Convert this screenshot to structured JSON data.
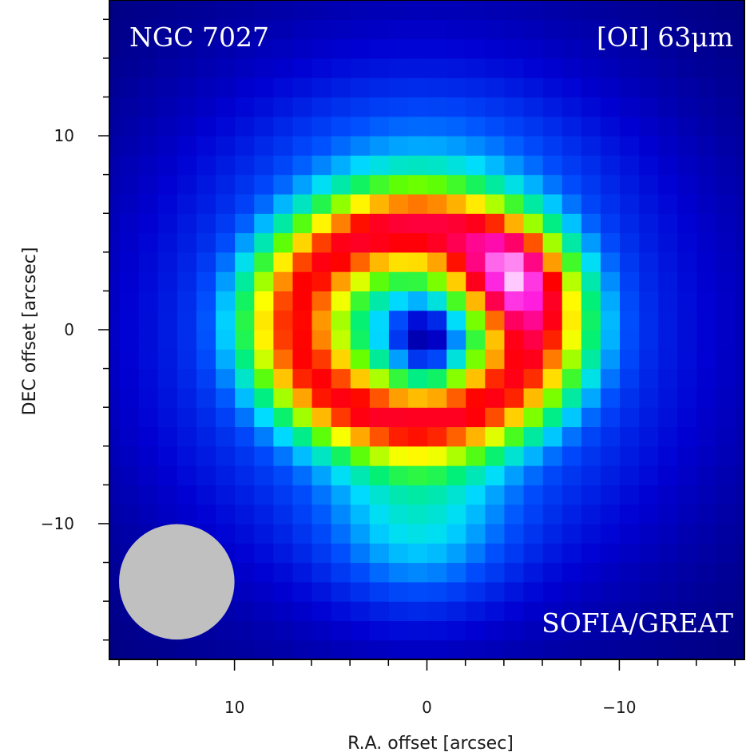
{
  "chart_data": {
    "type": "heatmap",
    "object_label": "NGC 7027",
    "line_label": "[OI] 63μm",
    "instrument_label": "SOFIA/GREAT",
    "xlabel": "R.A. offset [arcsec]",
    "ylabel": "DEC offset [arcsec]",
    "xlim": [
      16.5,
      -16.5
    ],
    "ylim": [
      -17,
      17
    ],
    "x_reversed": true,
    "x_ticks": [
      10,
      0,
      -10
    ],
    "x_tick_labels": [
      "10",
      "0",
      "−10"
    ],
    "y_ticks": [
      10,
      0,
      -10
    ],
    "y_tick_labels": [
      "10",
      "0",
      "−10"
    ],
    "pixel_size_arcsec": 1,
    "colormap": "rainbow: dark blue → blue → cyan → green → yellow → orange → red → magenta → white",
    "colormap_stops": [
      "#00006e",
      "#0000d2",
      "#0050ff",
      "#00dcff",
      "#00f078",
      "#64ff00",
      "#ffff00",
      "#ff9600",
      "#ff0000",
      "#ff0064",
      "#ff14dc",
      "#ffc8ff"
    ],
    "beam": {
      "center_arcsec": [
        13,
        -13
      ],
      "diameter_arcsec": 6,
      "color": "#c0c0c0"
    },
    "emission_model": {
      "description": "shell with peaks in a curled ridge, brightest peak NW near (-4.5, 2.5), central depression near (0, 0), plume toward south near (0, -10)",
      "components": [
        {
          "kind": "ring",
          "x": 0.6,
          "y": 0.3,
          "rx": 6.3,
          "ry": 5.0,
          "width": 1.8,
          "amp": 0.9
        },
        {
          "kind": "gauss",
          "x": -4.5,
          "y": 2.5,
          "sx": 1.6,
          "sy": 2.0,
          "amp": 0.38
        },
        {
          "kind": "gauss",
          "x": -1.5,
          "y": 2.2,
          "sx": 2.2,
          "sy": 1.3,
          "amp": 0.25
        },
        {
          "kind": "gauss",
          "x": 0.0,
          "y": -0.3,
          "sx": 1.4,
          "sy": 1.7,
          "amp": -0.42
        },
        {
          "kind": "gauss",
          "x": 0.5,
          "y": 0.0,
          "sx": 10.5,
          "sy": 10.0,
          "amp": 0.45
        },
        {
          "kind": "gauss",
          "x": 0.5,
          "y": -10.0,
          "sx": 3.2,
          "sy": 3.0,
          "amp": 0.25
        },
        {
          "kind": "gauss",
          "x": 0.0,
          "y": 8.0,
          "sx": 5.0,
          "sy": 3.0,
          "amp": 0.12
        }
      ]
    },
    "grid": false
  }
}
